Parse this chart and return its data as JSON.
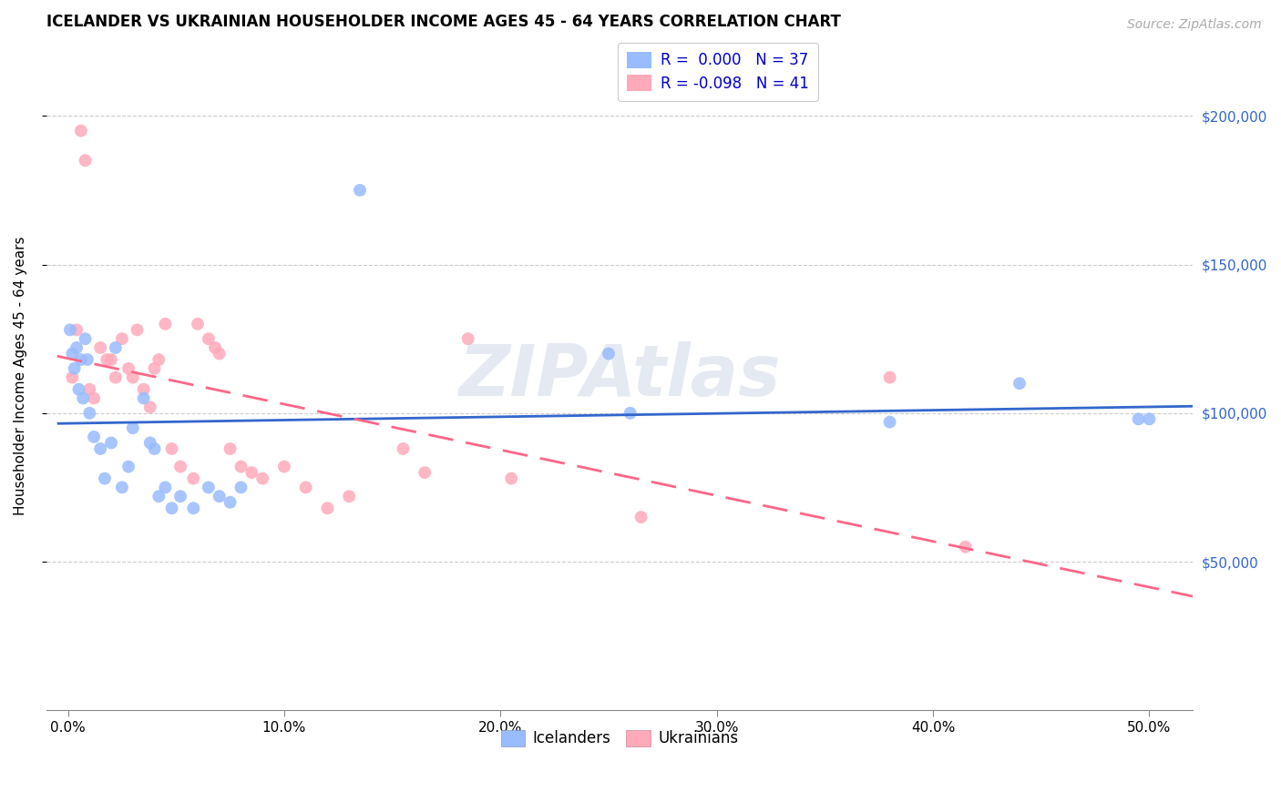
{
  "title": "ICELANDER VS UKRAINIAN HOUSEHOLDER INCOME AGES 45 - 64 YEARS CORRELATION CHART",
  "source": "Source: ZipAtlas.com",
  "ylabel": "Householder Income Ages 45 - 64 years",
  "xlabel_ticks": [
    "0.0%",
    "10.0%",
    "20.0%",
    "30.0%",
    "40.0%",
    "50.0%"
  ],
  "xlabel_vals": [
    0.0,
    0.1,
    0.2,
    0.3,
    0.4,
    0.5
  ],
  "ytick_labels": [
    "$50,000",
    "$100,000",
    "$150,000",
    "$200,000"
  ],
  "ytick_vals": [
    50000,
    100000,
    150000,
    200000
  ],
  "ylim": [
    0,
    225000
  ],
  "xlim": [
    -0.01,
    0.52
  ],
  "icelanders_x": [
    0.001,
    0.002,
    0.003,
    0.004,
    0.005,
    0.006,
    0.007,
    0.008,
    0.009,
    0.01,
    0.012,
    0.015,
    0.017,
    0.02,
    0.022,
    0.025,
    0.028,
    0.03,
    0.035,
    0.038,
    0.04,
    0.042,
    0.045,
    0.048,
    0.052,
    0.058,
    0.065,
    0.07,
    0.075,
    0.08,
    0.135,
    0.25,
    0.26,
    0.38,
    0.44,
    0.495,
    0.5
  ],
  "icelanders_y": [
    128000,
    120000,
    115000,
    122000,
    108000,
    118000,
    105000,
    125000,
    118000,
    100000,
    92000,
    88000,
    78000,
    90000,
    122000,
    75000,
    82000,
    95000,
    105000,
    90000,
    88000,
    72000,
    75000,
    68000,
    72000,
    68000,
    75000,
    72000,
    70000,
    75000,
    175000,
    120000,
    100000,
    97000,
    110000,
    98000,
    98000
  ],
  "ukrainians_x": [
    0.002,
    0.004,
    0.006,
    0.008,
    0.01,
    0.012,
    0.015,
    0.018,
    0.02,
    0.022,
    0.025,
    0.028,
    0.03,
    0.032,
    0.035,
    0.038,
    0.04,
    0.042,
    0.045,
    0.048,
    0.052,
    0.058,
    0.06,
    0.065,
    0.068,
    0.07,
    0.075,
    0.08,
    0.085,
    0.09,
    0.1,
    0.11,
    0.12,
    0.13,
    0.155,
    0.165,
    0.185,
    0.205,
    0.265,
    0.38,
    0.415
  ],
  "ukrainians_y": [
    112000,
    128000,
    195000,
    185000,
    108000,
    105000,
    122000,
    118000,
    118000,
    112000,
    125000,
    115000,
    112000,
    128000,
    108000,
    102000,
    115000,
    118000,
    130000,
    88000,
    82000,
    78000,
    130000,
    125000,
    122000,
    120000,
    88000,
    82000,
    80000,
    78000,
    82000,
    75000,
    68000,
    72000,
    88000,
    80000,
    125000,
    78000,
    65000,
    112000,
    55000
  ],
  "ice_R": "0.000",
  "ice_N": 37,
  "ukr_R": "-0.098",
  "ukr_N": 41,
  "ice_scatter_color": "#99bbff",
  "ukr_scatter_color": "#ffaabb",
  "ice_line_color": "#3366cc",
  "ukr_line_color": "#ff6688",
  "right_tick_color": "#3366cc",
  "title_fontsize": 12,
  "source_fontsize": 10,
  "label_fontsize": 11,
  "tick_fontsize": 11,
  "legend_fontsize": 12,
  "marker_size": 100,
  "background_color": "#ffffff",
  "grid_color": "#cccccc"
}
